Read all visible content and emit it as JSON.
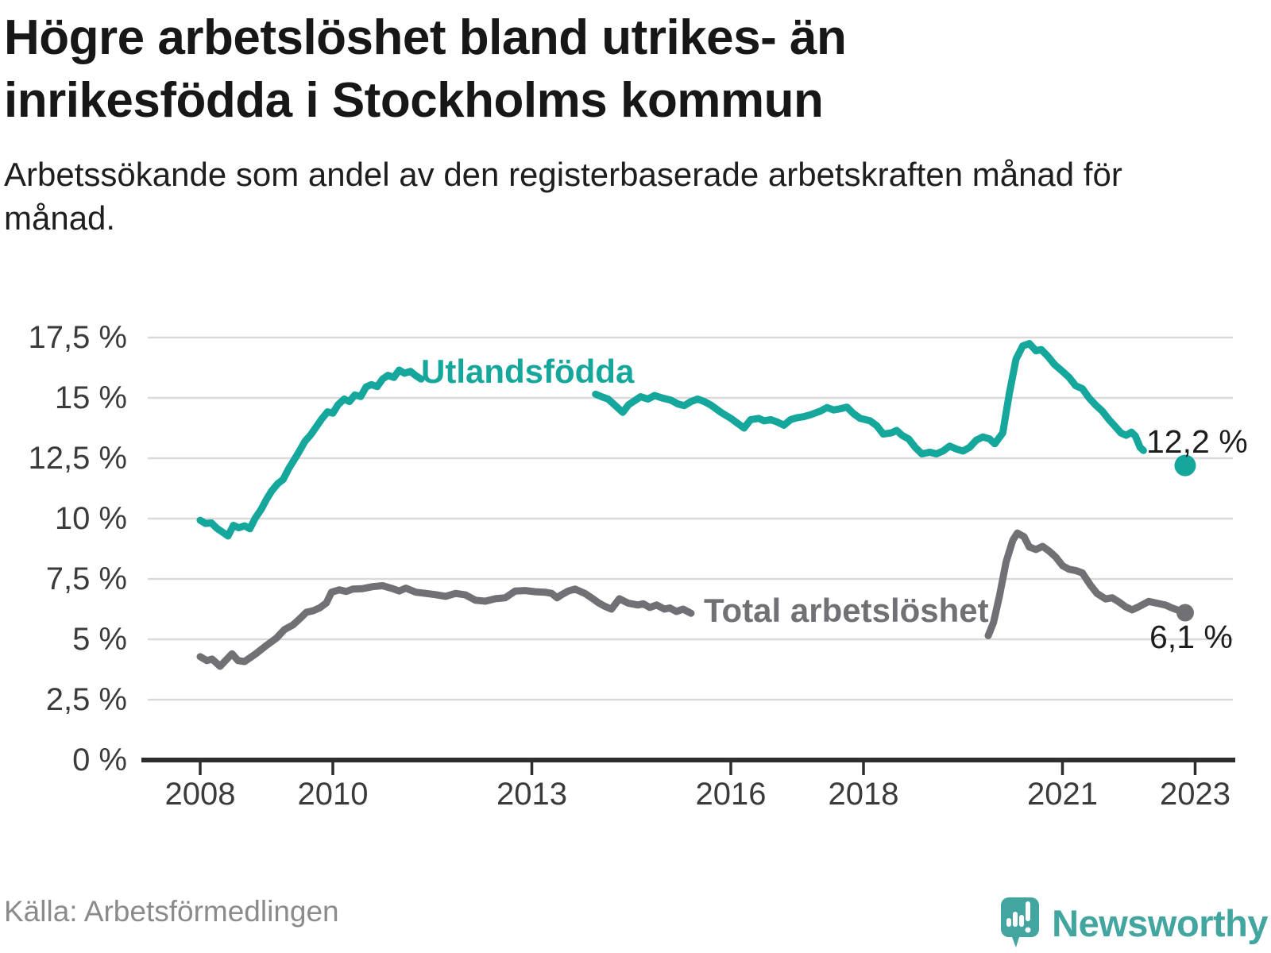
{
  "header": {
    "title": "Högre arbetslöshet bland utrikes- än inrikesfödda i Stockholms kommun",
    "subtitle": "Arbetssökande som andel av den registerbaserade arbetskraften månad för månad."
  },
  "footer": {
    "source": "Källa: Arbetsförmedlingen",
    "brand": "Newsworthy",
    "logo_color": "#43a5a0"
  },
  "chart_data": {
    "type": "line",
    "title": "Högre arbetslöshet bland utrikes- än inrikesfödda i Stockholms kommun",
    "subtitle": "Arbetssökande som andel av den registerbaserade arbetskraften månad för månad.",
    "source": "Källa: Arbetsförmedlingen",
    "unit": "%",
    "grid": true,
    "x_axis": {
      "min": 2007.85,
      "max": 2023.4,
      "ticks": [
        {
          "value": 2008,
          "label": "2008"
        },
        {
          "value": 2010,
          "label": "2010"
        },
        {
          "value": 2013,
          "label": "2013"
        },
        {
          "value": 2016,
          "label": "2016"
        },
        {
          "value": 2018,
          "label": "2018"
        },
        {
          "value": 2021,
          "label": "2021"
        },
        {
          "value": 2023,
          "label": "2023"
        }
      ]
    },
    "y_axis": {
      "min": 0,
      "max": 17.5,
      "ticks": [
        {
          "value": 0,
          "label": "0 %"
        },
        {
          "value": 2.5,
          "label": "2,5 %"
        },
        {
          "value": 5,
          "label": "5 %"
        },
        {
          "value": 7.5,
          "label": "7,5 %"
        },
        {
          "value": 10,
          "label": "10 %"
        },
        {
          "value": 12.5,
          "label": "12,5 %"
        },
        {
          "value": 15,
          "label": "15 %"
        },
        {
          "value": 17.5,
          "label": "17,5 %"
        }
      ]
    },
    "series": [
      {
        "name": "Utlandsfödda",
        "color": "#15a79b",
        "end_label": "12,2 %",
        "end_value": 12.2,
        "end_dot": [
          2022.85,
          12.2
        ],
        "segments": [
          [
            [
              2008.0,
              9.93
            ],
            [
              2008.08,
              9.8
            ],
            [
              2008.17,
              9.82
            ],
            [
              2008.25,
              9.6
            ],
            [
              2008.33,
              9.45
            ],
            [
              2008.42,
              9.28
            ],
            [
              2008.5,
              9.72
            ],
            [
              2008.58,
              9.62
            ],
            [
              2008.67,
              9.7
            ],
            [
              2008.75,
              9.58
            ],
            [
              2008.83,
              10.02
            ],
            [
              2008.92,
              10.38
            ],
            [
              2009.0,
              10.8
            ],
            [
              2009.08,
              11.15
            ],
            [
              2009.17,
              11.45
            ],
            [
              2009.25,
              11.62
            ],
            [
              2009.33,
              12.05
            ],
            [
              2009.42,
              12.45
            ],
            [
              2009.5,
              12.82
            ],
            [
              2009.58,
              13.2
            ],
            [
              2009.67,
              13.48
            ],
            [
              2009.75,
              13.8
            ],
            [
              2009.83,
              14.12
            ],
            [
              2009.92,
              14.42
            ],
            [
              2010.0,
              14.37
            ],
            [
              2010.08,
              14.72
            ],
            [
              2010.17,
              14.95
            ],
            [
              2010.25,
              14.85
            ],
            [
              2010.33,
              15.12
            ],
            [
              2010.42,
              15.06
            ],
            [
              2010.5,
              15.45
            ],
            [
              2010.58,
              15.55
            ],
            [
              2010.67,
              15.47
            ],
            [
              2010.75,
              15.78
            ],
            [
              2010.83,
              15.93
            ],
            [
              2010.92,
              15.85
            ],
            [
              2011.0,
              16.15
            ],
            [
              2011.08,
              16.02
            ],
            [
              2011.17,
              16.1
            ],
            [
              2011.25,
              15.92
            ],
            [
              2011.33,
              15.78
            ]
          ],
          [
            [
              2013.96,
              15.15
            ],
            [
              2014.05,
              15.05
            ],
            [
              2014.15,
              14.95
            ],
            [
              2014.25,
              14.7
            ],
            [
              2014.37,
              14.4
            ],
            [
              2014.46,
              14.72
            ],
            [
              2014.55,
              14.88
            ],
            [
              2014.64,
              15.05
            ],
            [
              2014.75,
              14.95
            ],
            [
              2014.85,
              15.1
            ],
            [
              2014.96,
              15.0
            ],
            [
              2015.1,
              14.9
            ],
            [
              2015.2,
              14.75
            ],
            [
              2015.3,
              14.68
            ],
            [
              2015.4,
              14.85
            ],
            [
              2015.5,
              14.95
            ],
            [
              2015.6,
              14.85
            ],
            [
              2015.7,
              14.7
            ],
            [
              2015.85,
              14.4
            ],
            [
              2016.0,
              14.15
            ],
            [
              2016.1,
              13.95
            ],
            [
              2016.2,
              13.75
            ],
            [
              2016.3,
              14.1
            ],
            [
              2016.42,
              14.15
            ],
            [
              2016.5,
              14.05
            ],
            [
              2016.6,
              14.1
            ],
            [
              2016.7,
              14.0
            ],
            [
              2016.8,
              13.87
            ],
            [
              2016.9,
              14.1
            ],
            [
              2017.0,
              14.18
            ],
            [
              2017.1,
              14.22
            ],
            [
              2017.2,
              14.3
            ],
            [
              2017.35,
              14.45
            ],
            [
              2017.45,
              14.6
            ],
            [
              2017.55,
              14.5
            ],
            [
              2017.65,
              14.55
            ],
            [
              2017.75,
              14.62
            ],
            [
              2017.85,
              14.35
            ],
            [
              2017.95,
              14.15
            ],
            [
              2018.1,
              14.05
            ],
            [
              2018.2,
              13.85
            ],
            [
              2018.3,
              13.5
            ],
            [
              2018.42,
              13.55
            ],
            [
              2018.5,
              13.65
            ],
            [
              2018.58,
              13.45
            ],
            [
              2018.68,
              13.3
            ],
            [
              2018.78,
              12.95
            ],
            [
              2018.88,
              12.68
            ],
            [
              2019.0,
              12.75
            ],
            [
              2019.1,
              12.68
            ],
            [
              2019.2,
              12.8
            ],
            [
              2019.3,
              13.0
            ],
            [
              2019.4,
              12.88
            ],
            [
              2019.5,
              12.8
            ],
            [
              2019.6,
              12.95
            ],
            [
              2019.7,
              13.25
            ],
            [
              2019.8,
              13.38
            ],
            [
              2019.9,
              13.3
            ],
            [
              2019.98,
              13.1
            ],
            [
              2020.1,
              13.55
            ],
            [
              2020.2,
              15.2
            ],
            [
              2020.3,
              16.6
            ],
            [
              2020.4,
              17.15
            ],
            [
              2020.5,
              17.25
            ],
            [
              2020.6,
              16.95
            ],
            [
              2020.68,
              17.0
            ],
            [
              2020.78,
              16.72
            ],
            [
              2020.88,
              16.38
            ],
            [
              2021.0,
              16.1
            ],
            [
              2021.1,
              15.85
            ],
            [
              2021.2,
              15.5
            ],
            [
              2021.3,
              15.38
            ],
            [
              2021.4,
              15.0
            ],
            [
              2021.5,
              14.7
            ],
            [
              2021.6,
              14.45
            ],
            [
              2021.7,
              14.1
            ],
            [
              2021.8,
              13.8
            ],
            [
              2021.88,
              13.55
            ],
            [
              2021.96,
              13.45
            ],
            [
              2022.04,
              13.58
            ],
            [
              2022.1,
              13.42
            ],
            [
              2022.17,
              12.95
            ],
            [
              2022.22,
              12.82
            ]
          ]
        ]
      },
      {
        "name": "Total arbetslöshet",
        "color": "#717175",
        "end_label": "6,1 %",
        "end_value": 6.1,
        "end_dot": [
          2022.85,
          6.1
        ],
        "segments": [
          [
            [
              2008.0,
              4.28
            ],
            [
              2008.1,
              4.12
            ],
            [
              2008.18,
              4.18
            ],
            [
              2008.3,
              3.88
            ],
            [
              2008.48,
              4.4
            ],
            [
              2008.57,
              4.12
            ],
            [
              2008.67,
              4.08
            ],
            [
              2008.84,
              4.4
            ],
            [
              2009.0,
              4.75
            ],
            [
              2009.15,
              5.05
            ],
            [
              2009.27,
              5.4
            ],
            [
              2009.4,
              5.6
            ],
            [
              2009.5,
              5.85
            ],
            [
              2009.6,
              6.12
            ],
            [
              2009.7,
              6.18
            ],
            [
              2009.8,
              6.3
            ],
            [
              2009.9,
              6.5
            ],
            [
              2009.98,
              6.95
            ],
            [
              2010.1,
              7.05
            ],
            [
              2010.2,
              6.98
            ],
            [
              2010.3,
              7.08
            ],
            [
              2010.45,
              7.1
            ],
            [
              2010.6,
              7.18
            ],
            [
              2010.75,
              7.22
            ],
            [
              2010.9,
              7.1
            ],
            [
              2011.0,
              7.0
            ],
            [
              2011.1,
              7.12
            ],
            [
              2011.25,
              6.95
            ],
            [
              2011.4,
              6.9
            ],
            [
              2011.55,
              6.85
            ],
            [
              2011.7,
              6.78
            ],
            [
              2011.85,
              6.9
            ],
            [
              2012.0,
              6.84
            ],
            [
              2012.15,
              6.62
            ],
            [
              2012.3,
              6.58
            ],
            [
              2012.45,
              6.68
            ],
            [
              2012.6,
              6.72
            ],
            [
              2012.75,
              7.0
            ],
            [
              2012.9,
              7.02
            ],
            [
              2013.05,
              6.97
            ],
            [
              2013.2,
              6.95
            ],
            [
              2013.3,
              6.9
            ],
            [
              2013.38,
              6.72
            ],
            [
              2013.45,
              6.85
            ],
            [
              2013.55,
              7.0
            ],
            [
              2013.65,
              7.08
            ],
            [
              2013.8,
              6.9
            ],
            [
              2013.92,
              6.68
            ],
            [
              2014.0,
              6.52
            ],
            [
              2014.1,
              6.37
            ],
            [
              2014.2,
              6.25
            ],
            [
              2014.32,
              6.68
            ],
            [
              2014.45,
              6.5
            ],
            [
              2014.6,
              6.42
            ],
            [
              2014.68,
              6.47
            ],
            [
              2014.78,
              6.32
            ],
            [
              2014.88,
              6.42
            ],
            [
              2015.0,
              6.25
            ],
            [
              2015.08,
              6.3
            ],
            [
              2015.18,
              6.15
            ],
            [
              2015.28,
              6.25
            ],
            [
              2015.4,
              6.08
            ]
          ],
          [
            [
              2019.88,
              5.15
            ],
            [
              2019.96,
              5.7
            ],
            [
              2020.05,
              6.8
            ],
            [
              2020.15,
              8.2
            ],
            [
              2020.25,
              9.1
            ],
            [
              2020.32,
              9.4
            ],
            [
              2020.42,
              9.25
            ],
            [
              2020.5,
              8.82
            ],
            [
              2020.6,
              8.72
            ],
            [
              2020.7,
              8.85
            ],
            [
              2020.8,
              8.65
            ],
            [
              2020.9,
              8.4
            ],
            [
              2021.0,
              8.05
            ],
            [
              2021.1,
              7.9
            ],
            [
              2021.2,
              7.85
            ],
            [
              2021.3,
              7.75
            ],
            [
              2021.42,
              7.25
            ],
            [
              2021.52,
              6.9
            ],
            [
              2021.65,
              6.67
            ],
            [
              2021.75,
              6.72
            ],
            [
              2021.85,
              6.55
            ],
            [
              2021.95,
              6.35
            ],
            [
              2022.05,
              6.22
            ],
            [
              2022.15,
              6.35
            ],
            [
              2022.3,
              6.57
            ],
            [
              2022.45,
              6.48
            ],
            [
              2022.55,
              6.42
            ],
            [
              2022.65,
              6.3
            ],
            [
              2022.75,
              6.2
            ],
            [
              2022.85,
              6.12
            ]
          ]
        ]
      }
    ]
  }
}
